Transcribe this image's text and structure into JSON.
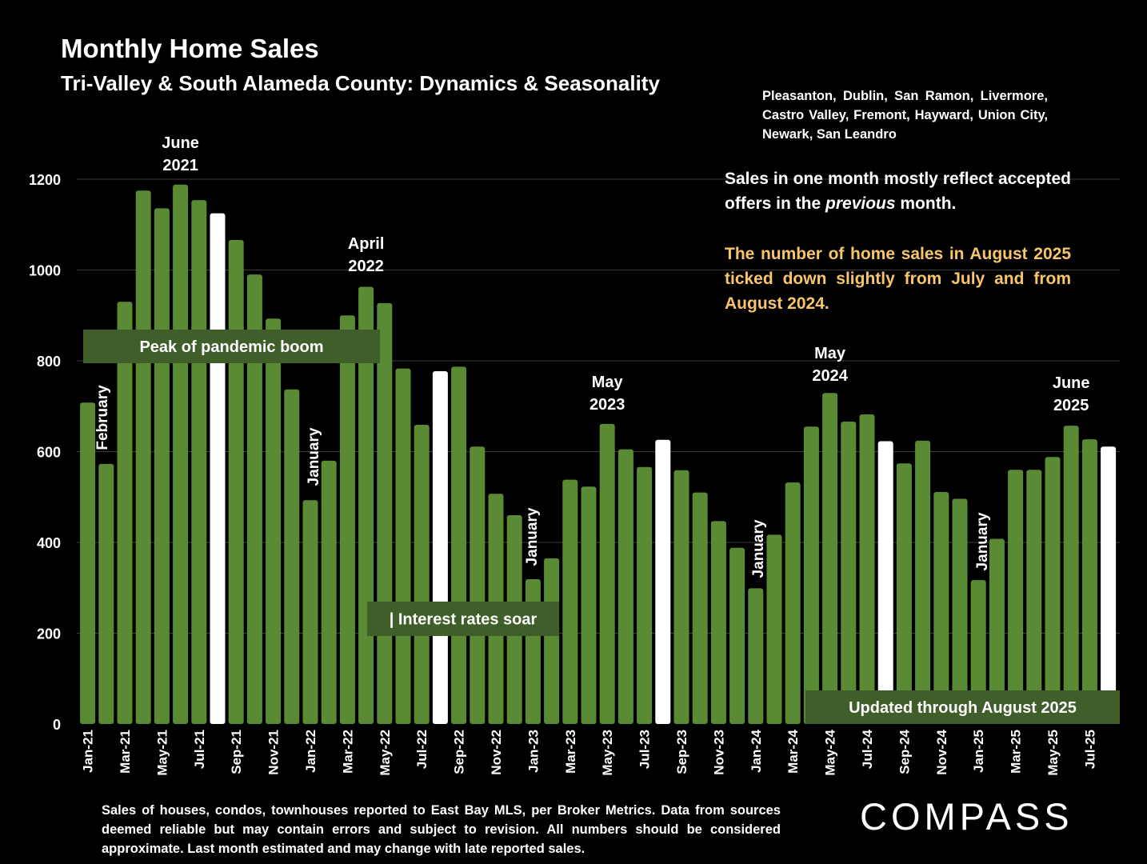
{
  "title": "Monthly Home Sales",
  "subtitle": "Tri-Valley & South Alameda County: Dynamics & Seasonality",
  "towns": "Pleasanton, Dublin, San Ramon, Livermore, Castro Valley, Fremont, Hayward, Union City, Newark, San Leandro",
  "note": {
    "line_before": "Sales in one month mostly reflect accepted offers in the ",
    "emphasis": "previous",
    "line_after": " month.",
    "highlight": "The number of home sales in August 2025 ticked down slightly from July and from August 2024."
  },
  "footnote": "Sales of houses, condos, townhouses reported to East Bay MLS, per Broker Metrics. Data from sources deemed reliable but may contain errors and subject to revision. All numbers should be considered approximate.  Last month estimated and may change with late reported sales.",
  "brand": {
    "logo": "COMPASS"
  },
  "colors": {
    "bar": "#5a8a33",
    "bar_highlight": "#ffffff",
    "label_box": "#3f5e2a",
    "axis_text": "#ffffff",
    "grid": "#3a3a3a",
    "gold_text": "#f7c56a"
  },
  "chart_data": {
    "type": "bar",
    "categories": [
      "Jan-21",
      "Feb-21",
      "Mar-21",
      "Apr-21",
      "May-21",
      "Jun-21",
      "Jul-21",
      "Aug-21",
      "Sep-21",
      "Oct-21",
      "Nov-21",
      "Dec-21",
      "Jan-22",
      "Feb-22",
      "Mar-22",
      "Apr-22",
      "May-22",
      "Jun-22",
      "Jul-22",
      "Aug-22",
      "Sep-22",
      "Oct-22",
      "Nov-22",
      "Dec-22",
      "Jan-23",
      "Feb-23",
      "Mar-23",
      "Apr-23",
      "May-23",
      "Jun-23",
      "Jul-23",
      "Aug-23",
      "Sep-23",
      "Oct-23",
      "Nov-23",
      "Dec-23",
      "Jan-24",
      "Feb-24",
      "Mar-24",
      "Apr-24",
      "May-24",
      "Jun-24",
      "Jul-24",
      "Aug-24",
      "Sep-24",
      "Oct-24",
      "Nov-24",
      "Dec-24",
      "Jan-25",
      "Feb-25",
      "Mar-25",
      "Apr-25",
      "May-25",
      "Jun-25",
      "Jul-25",
      "Aug-25"
    ],
    "tick_labels": [
      "Jan-21",
      "",
      "Mar-21",
      "",
      "May-21",
      "",
      "Jul-21",
      "",
      "Sep-21",
      "",
      "Nov-21",
      "",
      "Jan-22",
      "",
      "Mar-22",
      "",
      "May-22",
      "",
      "Jul-22",
      "",
      "Sep-22",
      "",
      "Nov-22",
      "",
      "Jan-23",
      "",
      "Mar-23",
      "",
      "May-23",
      "",
      "Jul-23",
      "",
      "Sep-23",
      "",
      "Nov-23",
      "",
      "Jan-24",
      "",
      "Mar-24",
      "",
      "May-24",
      "",
      "Jul-24",
      "",
      "Sep-24",
      "",
      "Nov-24",
      "",
      "Jan-25",
      "",
      "Mar-25",
      "",
      "May-25",
      "",
      "Jul-25",
      ""
    ],
    "values": [
      708,
      573,
      930,
      1175,
      1136,
      1188,
      1154,
      1125,
      1066,
      990,
      893,
      737,
      493,
      580,
      900,
      963,
      927,
      783,
      659,
      777,
      787,
      611,
      507,
      460,
      319,
      365,
      538,
      523,
      661,
      605,
      566,
      626,
      559,
      510,
      447,
      388,
      299,
      417,
      532,
      655,
      729,
      666,
      682,
      623,
      574,
      624,
      511,
      496,
      317,
      408,
      560,
      560,
      588,
      657,
      627,
      611
    ],
    "highlight_indices": [
      7,
      19,
      31,
      43,
      55
    ],
    "ylim": [
      0,
      1200
    ],
    "yticks": [
      0,
      200,
      400,
      600,
      800,
      1000,
      1200
    ],
    "grid": true,
    "legend": "none",
    "annotations": {
      "peak_label": "June 2021",
      "april_label": "April 2022",
      "may23_label": "May 2023",
      "may24_label": "May 2024",
      "june25_label": "June 2025",
      "february": "February",
      "january": "January",
      "box_pandemic": "Peak of pandemic boom",
      "box_rates": "| Interest rates soar",
      "box_updated": "Updated through August 2025"
    }
  }
}
